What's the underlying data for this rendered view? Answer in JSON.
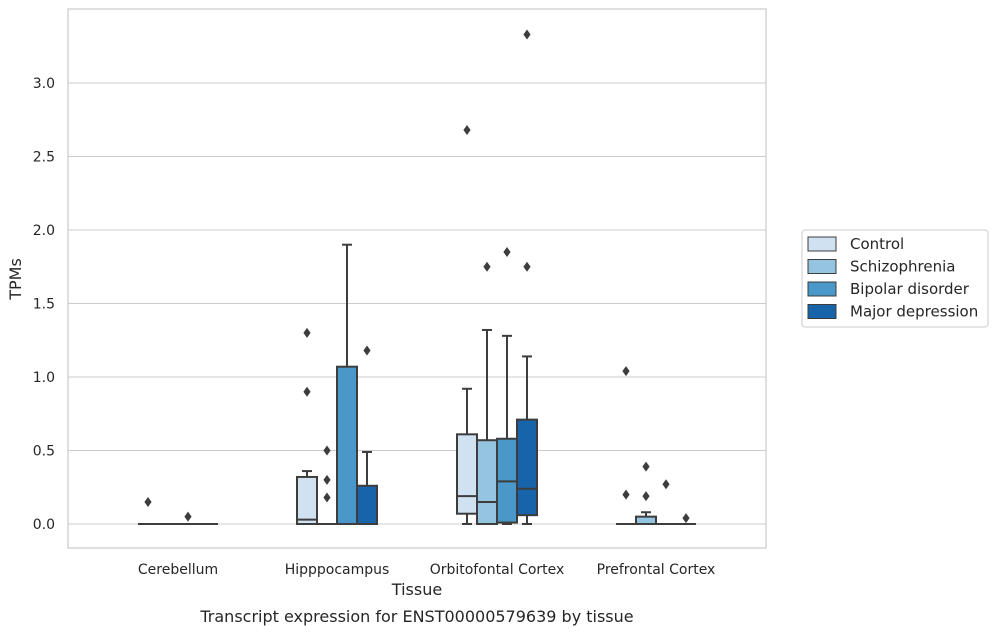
{
  "caption": "Transcript expression for ENST00000579639 by tissue",
  "chart_data": {
    "type": "box",
    "xlabel": "Tissue",
    "ylabel": "TPMs",
    "ylim": [
      -0.16,
      3.5
    ],
    "yticks": [
      "0.0",
      "0.5",
      "1.0",
      "1.5",
      "2.0",
      "2.5",
      "3.0"
    ],
    "ytick_values": [
      0,
      0.5,
      1.0,
      1.5,
      2.0,
      2.5,
      3.0
    ],
    "grid": "horizontal",
    "legend_position": "right",
    "categories": [
      "Cerebellum",
      "Hipppocampus",
      "Orbitofontal Cortex",
      "Prefrontal Cortex"
    ],
    "series": [
      {
        "name": "Control",
        "color": "#d0e1f2",
        "boxes": [
          {
            "min": 0,
            "q1": 0,
            "median": 0,
            "q3": 0,
            "max": 0,
            "outliers": [
              0.15
            ]
          },
          {
            "min": 0,
            "q1": 0,
            "median": 0.03,
            "q3": 0.32,
            "max": 0.36,
            "outliers": [
              1.3,
              0.9
            ]
          },
          {
            "min": 0,
            "q1": 0.07,
            "median": 0.19,
            "q3": 0.61,
            "max": 0.92,
            "outliers": [
              2.68
            ]
          },
          {
            "min": 0,
            "q1": 0,
            "median": 0,
            "q3": 0,
            "max": 0,
            "outliers": [
              1.04,
              0.2
            ]
          }
        ]
      },
      {
        "name": "Schizophrenia",
        "color": "#94c4df",
        "boxes": [
          {
            "min": 0,
            "q1": 0,
            "median": 0,
            "q3": 0,
            "max": 0,
            "outliers": []
          },
          {
            "min": 0,
            "q1": 0,
            "median": 0,
            "q3": 0,
            "max": 0,
            "outliers": [
              0.5,
              0.3,
              0.18
            ]
          },
          {
            "min": 0,
            "q1": 0,
            "median": 0.15,
            "q3": 0.57,
            "max": 1.32,
            "outliers": [
              1.75
            ]
          },
          {
            "min": 0,
            "q1": 0,
            "median": 0,
            "q3": 0.05,
            "max": 0.08,
            "outliers": [
              0.39,
              0.19
            ]
          }
        ]
      },
      {
        "name": "Bipolar disorder",
        "color": "#4a98c9",
        "boxes": [
          {
            "min": 0,
            "q1": 0,
            "median": 0,
            "q3": 0,
            "max": 0,
            "outliers": [
              0.05
            ]
          },
          {
            "min": 0,
            "q1": 0,
            "median": 0,
            "q3": 1.07,
            "max": 1.9,
            "outliers": []
          },
          {
            "min": 0,
            "q1": 0.01,
            "median": 0.29,
            "q3": 0.58,
            "max": 1.28,
            "outliers": [
              1.85
            ]
          },
          {
            "min": 0,
            "q1": 0,
            "median": 0,
            "q3": 0,
            "max": 0,
            "outliers": [
              0.27
            ]
          }
        ]
      },
      {
        "name": "Major depression",
        "color": "#1764ab",
        "boxes": [
          {
            "min": 0,
            "q1": 0,
            "median": 0,
            "q3": 0,
            "max": 0,
            "outliers": []
          },
          {
            "min": 0,
            "q1": 0,
            "median": 0,
            "q3": 0.26,
            "max": 0.49,
            "outliers": [
              1.18
            ]
          },
          {
            "min": 0,
            "q1": 0.06,
            "median": 0.24,
            "q3": 0.71,
            "max": 1.14,
            "outliers": [
              3.33,
              1.75
            ]
          },
          {
            "min": 0,
            "q1": 0,
            "median": 0,
            "q3": 0,
            "max": 0,
            "outliers": [
              0.04
            ]
          }
        ]
      }
    ]
  }
}
